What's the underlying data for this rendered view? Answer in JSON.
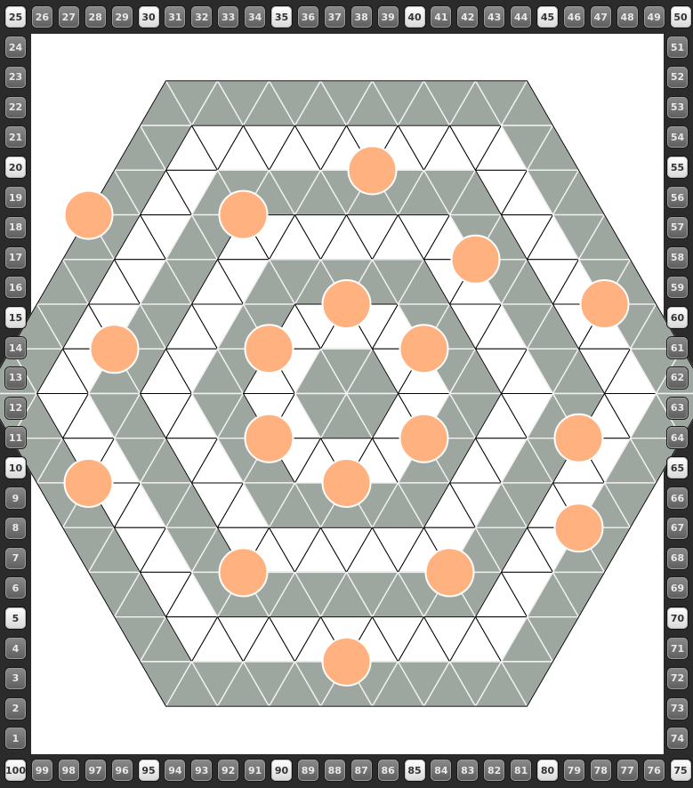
{
  "board": {
    "shape": "hexagon",
    "grid": "triangular",
    "colors": {
      "frame": "#2b2b2b",
      "tile_shaded": "#9ea6a0",
      "tile_empty": "#ffffff",
      "line": "#000000",
      "piece": "#ffb27f"
    },
    "pieces": [
      {
        "q": -3,
        "r": -4
      },
      {
        "q": 0,
        "r": -4
      },
      {
        "q": 3,
        "r": -5
      },
      {
        "q": -4,
        "r": -1
      },
      {
        "q": -1,
        "r": -1
      },
      {
        "q": 1,
        "r": -2
      },
      {
        "q": 4,
        "r": -3
      },
      {
        "q": -6,
        "r": 2
      },
      {
        "q": -2,
        "r": 1
      },
      {
        "q": 2,
        "r": -1
      },
      {
        "q": 6,
        "r": -2
      },
      {
        "q": -1,
        "r": 2
      },
      {
        "q": 1,
        "r": 1
      },
      {
        "q": -4,
        "r": 4
      },
      {
        "q": 4,
        "r": 1
      },
      {
        "q": 0,
        "r": 4
      },
      {
        "q": -3,
        "r": 6
      },
      {
        "q": 3,
        "r": 3
      }
    ]
  },
  "track": {
    "top": [
      "25",
      "26",
      "27",
      "28",
      "29",
      "30",
      "31",
      "32",
      "33",
      "34",
      "35",
      "36",
      "37",
      "38",
      "39",
      "40",
      "41",
      "42",
      "43",
      "44",
      "45",
      "46",
      "47",
      "48",
      "49",
      "50"
    ],
    "left": [
      "24",
      "23",
      "22",
      "21",
      "20",
      "19",
      "18",
      "17",
      "16",
      "15",
      "14",
      "13",
      "12",
      "11",
      "10",
      "9",
      "8",
      "7",
      "6",
      "5",
      "4",
      "3",
      "2",
      "1"
    ],
    "right": [
      "51",
      "52",
      "53",
      "54",
      "55",
      "56",
      "57",
      "58",
      "59",
      "60",
      "61",
      "62",
      "63",
      "64",
      "65",
      "66",
      "67",
      "68",
      "69",
      "70",
      "71",
      "72",
      "73",
      "74"
    ],
    "bottom": [
      "100",
      "99",
      "98",
      "97",
      "96",
      "95",
      "94",
      "93",
      "92",
      "91",
      "90",
      "89",
      "88",
      "87",
      "86",
      "85",
      "84",
      "83",
      "82",
      "81",
      "80",
      "79",
      "78",
      "77",
      "76",
      "75"
    ],
    "highlighted": [
      "25",
      "30",
      "35",
      "40",
      "45",
      "50",
      "5",
      "10",
      "15",
      "20",
      "55",
      "60",
      "65",
      "70",
      "75",
      "80",
      "85",
      "90",
      "95",
      "100"
    ]
  }
}
